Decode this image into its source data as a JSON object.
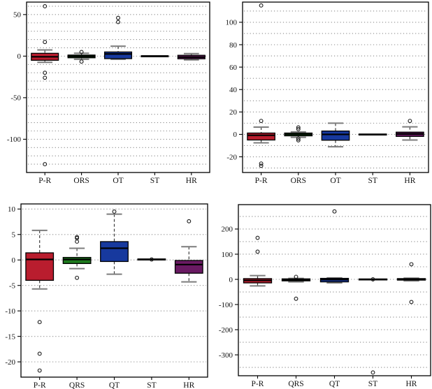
{
  "page": {
    "background": "#ffffff"
  },
  "style": {
    "axis_color": "#000000",
    "grid_color": "#8c8c8c",
    "tick_label_color": "#111111",
    "whisker_color": "#3c3c3c",
    "cap_color": "#7d7d7d",
    "median_color": "#000000",
    "box_border_color": "#000000",
    "outlier_color": "#1a1a1a",
    "box_colors": {
      "red": "#b91d2e",
      "green": "#1e7b1e",
      "blue": "#17399e",
      "purple": "#6a1a63",
      "black": "#111111"
    }
  },
  "chart_data": [
    {
      "type": "box",
      "position": "top-left",
      "title": "",
      "xlabel": "",
      "ylabel": "",
      "ylim": [
        -140,
        65
      ],
      "yticks": [
        50,
        0,
        -50,
        -100
      ],
      "grid": {
        "min": -130,
        "max": 60,
        "step": 10
      },
      "legend": "none",
      "categories": [
        "P-R",
        "QRS",
        "QT",
        "ST",
        "HR"
      ],
      "series": [
        {
          "category": "P-R",
          "color": "#b91d2e",
          "q1": -5.0,
          "median": -0.8,
          "q3": 3.4,
          "whisker_low": -7.5,
          "whisker_high": 7.5,
          "outliers": [
            60,
            17,
            -20,
            -26,
            -130
          ]
        },
        {
          "category": "QRS",
          "color": "#1e7b1e",
          "q1": -2.0,
          "median": -0.3,
          "q3": 1.3,
          "whisker_low": -3.8,
          "whisker_high": 3.5,
          "outliers": [
            5,
            -6.5
          ]
        },
        {
          "category": "QT",
          "color": "#17399e",
          "q1": -3.0,
          "median": 2.6,
          "q3": 5.0,
          "whisker_low": -3.8,
          "whisker_high": 12.0,
          "outliers": [
            46,
            41
          ]
        },
        {
          "category": "ST",
          "color": "#111111",
          "q1": -0.3,
          "median": 0.1,
          "q3": 0.4,
          "whisker_low": -0.3,
          "whisker_high": 0.4,
          "outliers": []
        },
        {
          "category": "HR",
          "color": "#6a1a63",
          "q1": -3.2,
          "median": -1.2,
          "q3": 1.0,
          "whisker_low": -4.5,
          "whisker_high": 3.0,
          "outliers": []
        }
      ]
    },
    {
      "type": "box",
      "position": "top-right",
      "title": "",
      "xlabel": "",
      "ylabel": "",
      "ylim": [
        -34,
        118
      ],
      "yticks": [
        100,
        80,
        60,
        40,
        20,
        0,
        -20
      ],
      "grid": {
        "min": -30,
        "max": 110,
        "step": 10
      },
      "legend": "none",
      "categories": [
        "P-R",
        "QRS",
        "QT",
        "ST",
        "HR"
      ],
      "series": [
        {
          "category": "P-R",
          "color": "#b91d2e",
          "q1": -5.0,
          "median": -0.8,
          "q3": 1.2,
          "whisker_low": -7.5,
          "whisker_high": 6.5,
          "outliers": [
            115,
            12,
            -26,
            -28
          ]
        },
        {
          "category": "QRS",
          "color": "#1e7b1e",
          "q1": -1.3,
          "median": 0.0,
          "q3": 1.2,
          "whisker_low": -2.6,
          "whisker_high": 2.2,
          "outliers": [
            6.2,
            4.7,
            -3.8,
            -5.3
          ]
        },
        {
          "category": "QT",
          "color": "#17399e",
          "q1": -5.2,
          "median": 0.0,
          "q3": 3.0,
          "whisker_low": -11.0,
          "whisker_high": 10.0,
          "outliers": []
        },
        {
          "category": "ST",
          "color": "#111111",
          "q1": -0.3,
          "median": 0.0,
          "q3": 0.3,
          "whisker_low": -0.3,
          "whisker_high": 0.3,
          "outliers": []
        },
        {
          "category": "HR",
          "color": "#6a1a63",
          "q1": -1.8,
          "median": 0.4,
          "q3": 2.0,
          "whisker_low": -5.0,
          "whisker_high": 6.7,
          "outliers": [
            12
          ]
        }
      ]
    },
    {
      "type": "box",
      "position": "bottom-left",
      "title": "",
      "xlabel": "",
      "ylabel": "",
      "ylim": [
        -23,
        11
      ],
      "yticks": [
        10,
        5,
        0,
        -5,
        -10,
        -15,
        -20
      ],
      "grid": {
        "min": -20,
        "max": 10,
        "step": 5
      },
      "legend": "none",
      "categories": [
        "P-R",
        "QRS",
        "QT",
        "ST",
        "HR"
      ],
      "series": [
        {
          "category": "P-R",
          "color": "#b91d2e",
          "q1": -4.0,
          "median": 0.1,
          "q3": 1.4,
          "whisker_low": -5.7,
          "whisker_high": 5.8,
          "outliers": [
            -12.2,
            -18.4,
            -21.7
          ]
        },
        {
          "category": "QRS",
          "color": "#1e7b1e",
          "q1": -0.7,
          "median": 0.1,
          "q3": 0.5,
          "whisker_low": -1.7,
          "whisker_high": 2.3,
          "outliers": [
            4.5,
            4.3,
            3.6,
            -3.5
          ]
        },
        {
          "category": "QT",
          "color": "#17399e",
          "q1": -0.3,
          "median": 2.3,
          "q3": 3.6,
          "whisker_low": -2.8,
          "whisker_high": 9.0,
          "outliers": [
            9.5
          ]
        },
        {
          "category": "ST",
          "color": "#111111",
          "q1": 0.0,
          "median": 0.1,
          "q3": 0.2,
          "whisker_low": 0.0,
          "whisker_high": 0.2,
          "outliers": [
            0.1
          ]
        },
        {
          "category": "HR",
          "color": "#6a1a63",
          "q1": -2.6,
          "median": -0.9,
          "q3": -0.1,
          "whisker_low": -4.3,
          "whisker_high": 2.6,
          "outliers": [
            7.6
          ]
        }
      ]
    },
    {
      "type": "box",
      "position": "bottom-right",
      "title": "",
      "xlabel": "",
      "ylabel": "",
      "ylim": [
        -383,
        297
      ],
      "yticks": [
        200,
        100,
        0,
        -100,
        -200,
        -300
      ],
      "grid": {
        "min": -350,
        "max": 250,
        "step": 50
      },
      "legend": "none",
      "categories": [
        "P-R",
        "QRS",
        "QT",
        "ST",
        "HR"
      ],
      "series": [
        {
          "category": "P-R",
          "color": "#b91d2e",
          "q1": -14.0,
          "median": -4.0,
          "q3": 3.0,
          "whisker_low": -26.0,
          "whisker_high": 15.0,
          "outliers": [
            165,
            110
          ]
        },
        {
          "category": "QRS",
          "color": "#1e7b1e",
          "q1": -6.0,
          "median": -1.0,
          "q3": 2.0,
          "whisker_low": -10.0,
          "whisker_high": 4.0,
          "outliers": [
            10,
            -77
          ]
        },
        {
          "category": "QT",
          "color": "#17399e",
          "q1": -10.0,
          "median": -1.0,
          "q3": 4.0,
          "whisker_low": -14.0,
          "whisker_high": 6.0,
          "outliers": [
            270
          ]
        },
        {
          "category": "ST",
          "color": "#111111",
          "q1": -1.5,
          "median": 0.0,
          "q3": 1.5,
          "whisker_low": -1.5,
          "whisker_high": 1.5,
          "outliers": [
            0,
            -370
          ]
        },
        {
          "category": "HR",
          "color": "#6a1a63",
          "q1": -3.0,
          "median": 0.0,
          "q3": 3.0,
          "whisker_low": -6.0,
          "whisker_high": 5.0,
          "outliers": [
            60,
            -90
          ]
        }
      ]
    }
  ]
}
